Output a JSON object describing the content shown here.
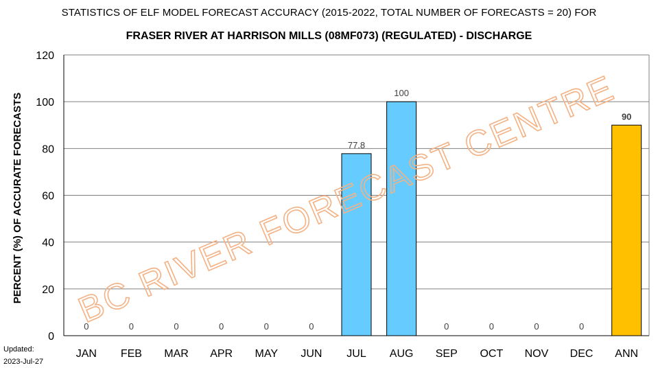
{
  "chart_data": {
    "type": "bar",
    "title": "STATISTICS OF ELF MODEL FORECAST ACCURACY (2015-2022, TOTAL NUMBER OF FORECASTS = 20) FOR",
    "subtitle": "FRASER RIVER AT HARRISON MILLS (08MF073) (REGULATED)  - DISCHARGE",
    "xlabel": "",
    "ylabel": "PERCENT (%) OF ACCURATE FORECASTS",
    "ylim": [
      0,
      120
    ],
    "yticks": [
      0,
      20,
      40,
      60,
      80,
      100,
      120
    ],
    "grid": true,
    "categories": [
      "JAN",
      "FEB",
      "MAR",
      "APR",
      "MAY",
      "JUN",
      "JUL",
      "AUG",
      "SEP",
      "OCT",
      "NOV",
      "DEC",
      "ANN"
    ],
    "values": [
      0,
      0,
      0,
      0,
      0,
      0,
      77.8,
      100,
      0,
      0,
      0,
      0,
      90
    ],
    "data_labels": [
      "0",
      "0",
      "0",
      "0",
      "0",
      "0",
      "77.8",
      "100",
      "0",
      "0",
      "0",
      "0",
      "90"
    ],
    "colors": {
      "monthly": "#66CCFF",
      "annual": "#FFC000",
      "bar_outline": "#000000",
      "grid": "#808080"
    }
  },
  "watermark": "BC RIVER FORECAST CENTRE",
  "footer": {
    "updated_label": "Updated:",
    "updated_date": "2023-Jul-27"
  }
}
